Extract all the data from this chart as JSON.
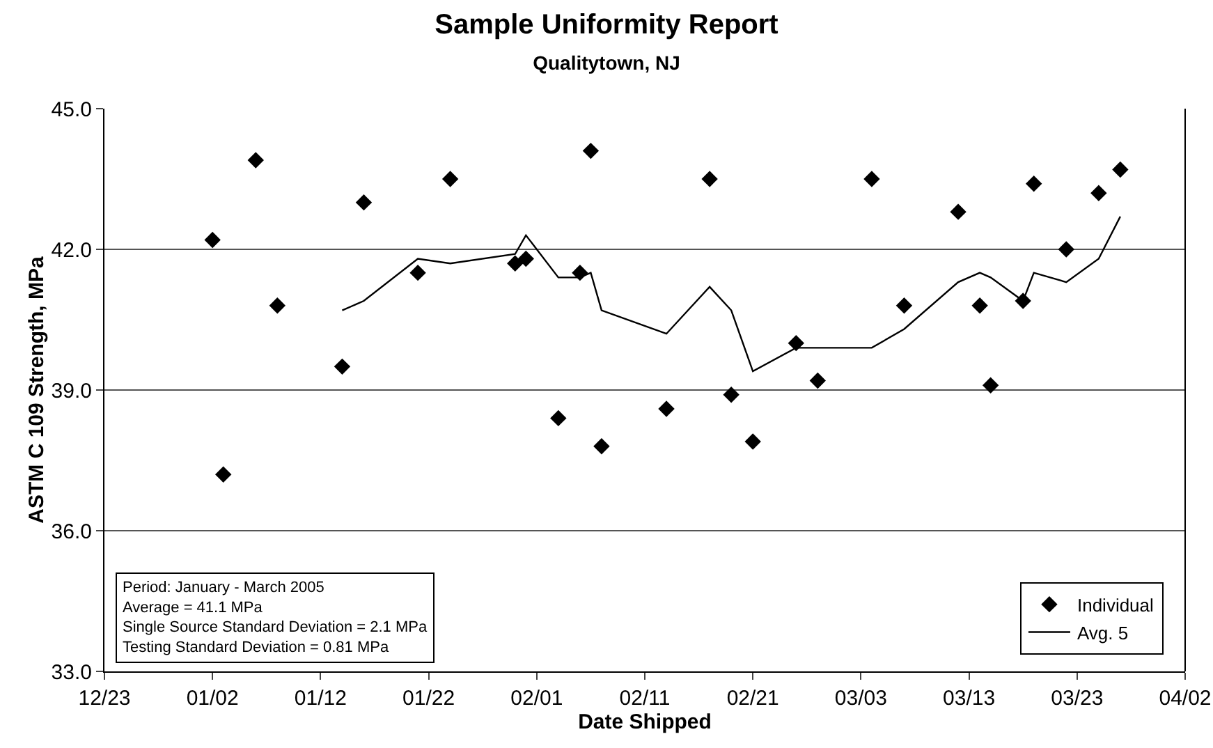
{
  "chart_data": {
    "type": "scatter",
    "title": "Sample Uniformity Report",
    "subtitle": "Qualitytown, NJ",
    "xlabel": "Date Shipped",
    "ylabel": "ASTM C 109 Strength, MPa",
    "series": [
      {
        "name": "Individual",
        "marker": "diamond",
        "color": "#000000",
        "x": [
          "2005-01-02",
          "2005-01-03",
          "2005-01-06",
          "2005-01-08",
          "2005-01-14",
          "2005-01-16",
          "2005-01-21",
          "2005-01-24",
          "2005-01-30",
          "2005-01-31",
          "2005-02-03",
          "2005-02-05",
          "2005-02-06",
          "2005-02-07",
          "2005-02-13",
          "2005-02-17",
          "2005-02-19",
          "2005-02-21",
          "2005-02-25",
          "2005-02-27",
          "2005-03-04",
          "2005-03-07",
          "2005-03-12",
          "2005-03-14",
          "2005-03-15",
          "2005-03-18",
          "2005-03-19",
          "2005-03-22",
          "2005-03-25",
          "2005-03-27"
        ],
        "values": [
          42.2,
          37.2,
          43.9,
          40.8,
          39.5,
          43.0,
          41.5,
          43.5,
          41.7,
          41.8,
          38.4,
          41.5,
          44.1,
          37.8,
          38.6,
          43.5,
          38.9,
          37.9,
          40.0,
          39.2,
          43.5,
          40.8,
          42.8,
          40.8,
          39.1,
          40.9,
          43.4,
          42.0,
          43.2,
          43.7
        ]
      },
      {
        "name": "Avg. 5",
        "type": "line",
        "marker": "none",
        "line_style": "solid",
        "color": "#000000",
        "x": [
          "2005-01-14",
          "2005-01-16",
          "2005-01-21",
          "2005-01-24",
          "2005-01-30",
          "2005-01-31",
          "2005-02-03",
          "2005-02-05",
          "2005-02-06",
          "2005-02-07",
          "2005-02-13",
          "2005-02-17",
          "2005-02-19",
          "2005-02-21",
          "2005-02-25",
          "2005-02-27",
          "2005-03-04",
          "2005-03-07",
          "2005-03-12",
          "2005-03-14",
          "2005-03-15",
          "2005-03-18",
          "2005-03-19",
          "2005-03-22",
          "2005-03-25",
          "2005-03-27"
        ],
        "values": [
          40.7,
          40.9,
          41.8,
          41.7,
          41.9,
          42.3,
          41.4,
          41.4,
          41.5,
          40.7,
          40.2,
          41.2,
          40.7,
          39.4,
          39.9,
          39.9,
          39.9,
          40.3,
          41.3,
          41.5,
          41.4,
          40.9,
          41.5,
          41.3,
          41.8,
          42.7
        ]
      }
    ],
    "xlim": [
      "2004-12-23",
      "2005-04-02"
    ],
    "xticks": [
      {
        "value": "2004-12-23",
        "label": "12/23"
      },
      {
        "value": "2005-01-02",
        "label": "01/02"
      },
      {
        "value": "2005-01-12",
        "label": "01/12"
      },
      {
        "value": "2005-01-22",
        "label": "01/22"
      },
      {
        "value": "2005-02-01",
        "label": "02/01"
      },
      {
        "value": "2005-02-11",
        "label": "02/11"
      },
      {
        "value": "2005-02-21",
        "label": "02/21"
      },
      {
        "value": "2005-03-03",
        "label": "03/03"
      },
      {
        "value": "2005-03-13",
        "label": "03/13"
      },
      {
        "value": "2005-03-23",
        "label": "03/23"
      },
      {
        "value": "2005-04-02",
        "label": "04/02"
      }
    ],
    "ylim": [
      33,
      45
    ],
    "yticks": [
      {
        "value": 33,
        "label": "33.0"
      },
      {
        "value": 36,
        "label": "36.0"
      },
      {
        "value": 39,
        "label": "39.0"
      },
      {
        "value": 42,
        "label": "42.0"
      },
      {
        "value": 45,
        "label": "45.0"
      }
    ],
    "grid": "y",
    "legend": "bottom right",
    "annotations": [
      "Period: January - March 2005",
      "Average = 41.1 MPa",
      "Single Source Standard Deviation = 2.1 MPa",
      "Testing Standard Deviation = 0.81 MPa"
    ]
  }
}
